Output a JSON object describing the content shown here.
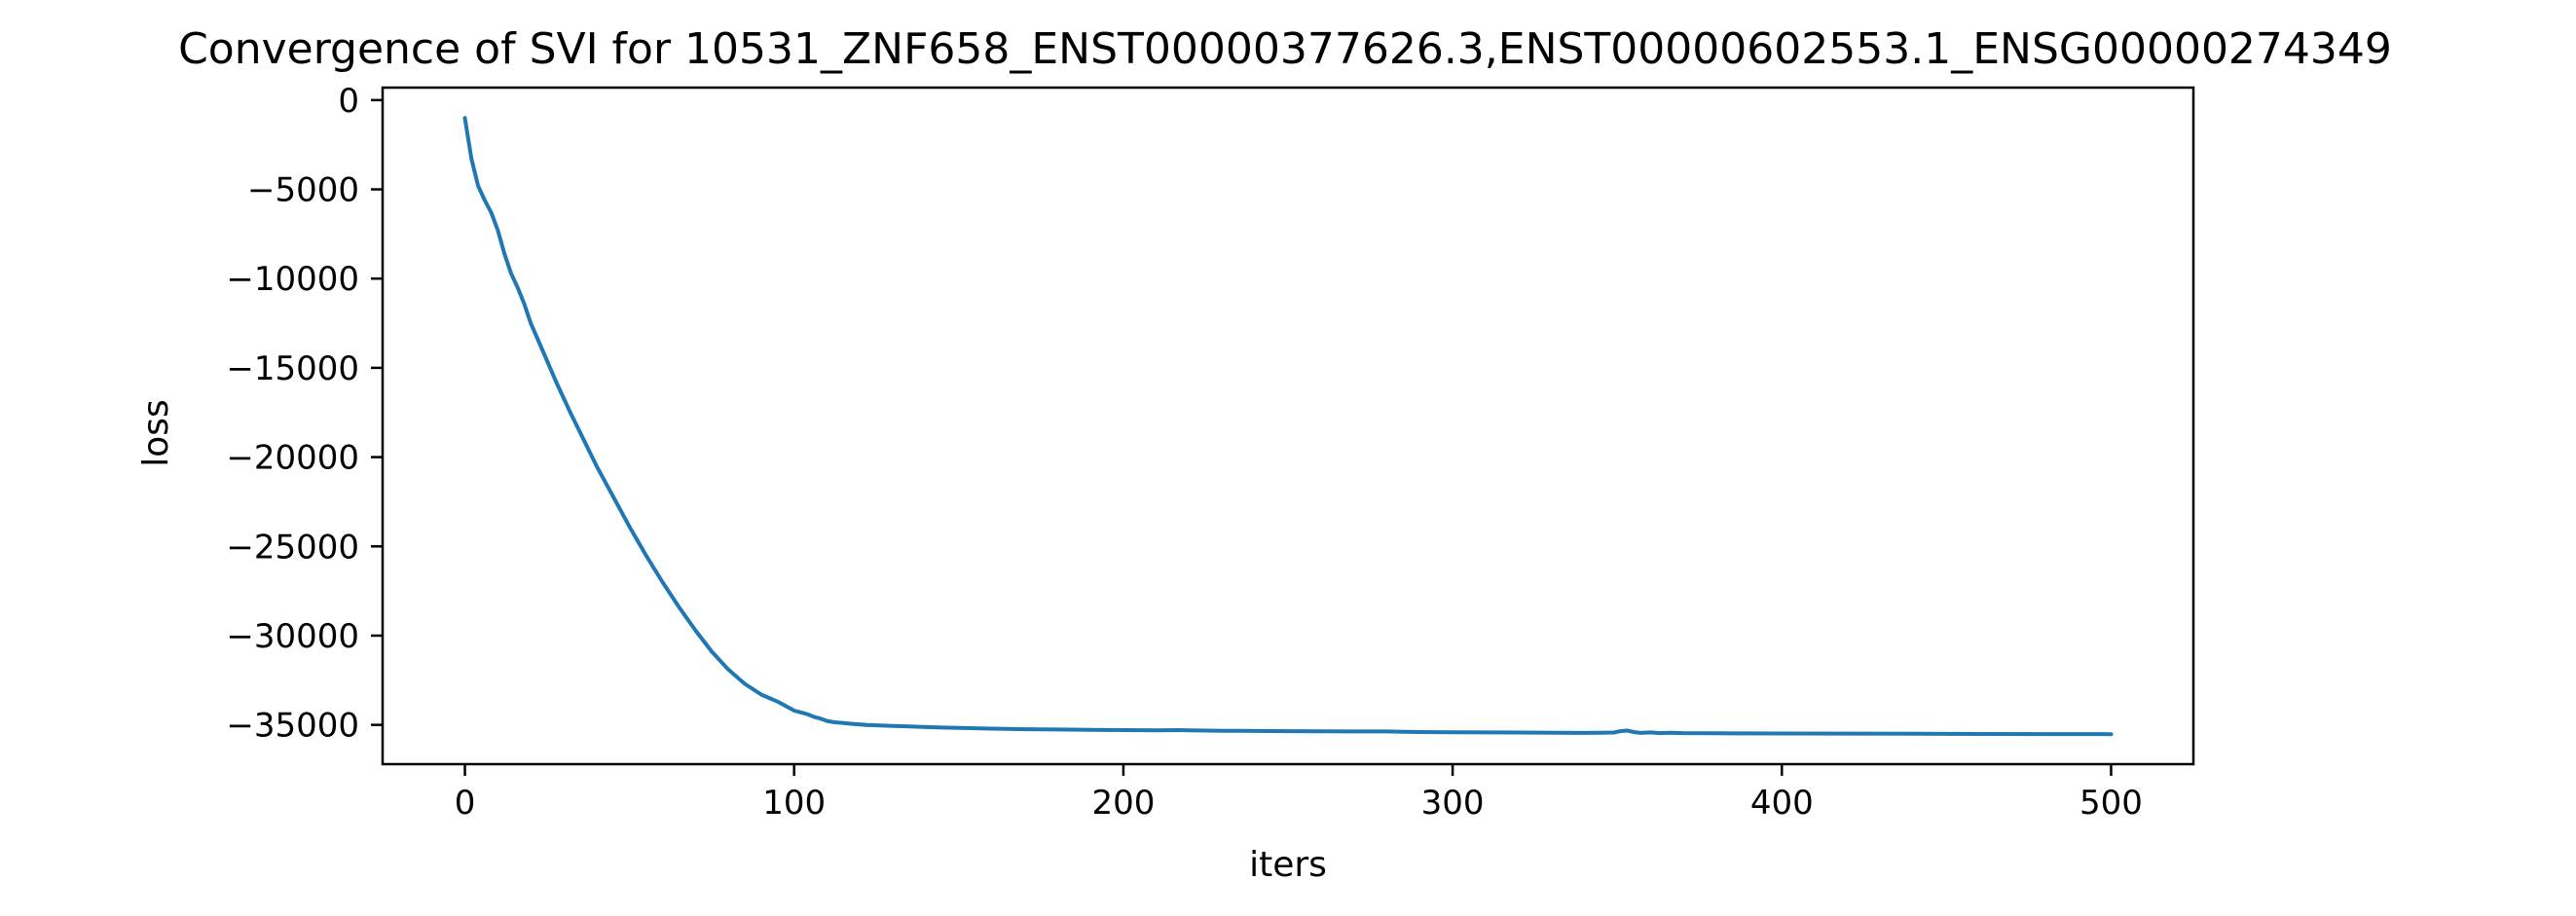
{
  "chart_data": {
    "type": "line",
    "title": "Convergence of SVI for 10531_ZNF658_ENST00000377626.3,ENST00000602553.1_ENSG00000274349",
    "xlabel": "iters",
    "ylabel": "loss",
    "xlim": [
      -25,
      525
    ],
    "ylim": [
      -37200,
      700
    ],
    "xticks": [
      0,
      100,
      200,
      300,
      400,
      500
    ],
    "xtick_labels": [
      "0",
      "100",
      "200",
      "300",
      "400",
      "500"
    ],
    "yticks": [
      0,
      -5000,
      -10000,
      -15000,
      -20000,
      -25000,
      -30000,
      -35000
    ],
    "ytick_labels": [
      "0",
      "−5000",
      "−10000",
      "−15000",
      "−20000",
      "−25000",
      "−30000",
      "−35000"
    ],
    "grid": false,
    "series": [
      {
        "color": "#1f77b4",
        "x": [
          0,
          2,
          4,
          6,
          8,
          10,
          12,
          14,
          16,
          18,
          20,
          24,
          28,
          32,
          36,
          40,
          45,
          50,
          55,
          60,
          65,
          70,
          75,
          80,
          85,
          90,
          95,
          100,
          102,
          104,
          106,
          108,
          110,
          112,
          115,
          118,
          122,
          126,
          130,
          135,
          140,
          145,
          150,
          155,
          160,
          170,
          180,
          190,
          200,
          210,
          217,
          220,
          225,
          230,
          240,
          250,
          260,
          270,
          280,
          285,
          290,
          300,
          310,
          320,
          330,
          340,
          345,
          349,
          351,
          353,
          355,
          357,
          360,
          363,
          366,
          370,
          380,
          400,
          420,
          440,
          460,
          480,
          500
        ],
        "y": [
          -1000,
          -3300,
          -4800,
          -5600,
          -6300,
          -7300,
          -8600,
          -9700,
          -10500,
          -11400,
          -12500,
          -14200,
          -15900,
          -17500,
          -19000,
          -20500,
          -22200,
          -23900,
          -25500,
          -27000,
          -28400,
          -29700,
          -30900,
          -31900,
          -32700,
          -33300,
          -33700,
          -34200,
          -34300,
          -34400,
          -34550,
          -34650,
          -34780,
          -34850,
          -34900,
          -34950,
          -35000,
          -35030,
          -35060,
          -35090,
          -35120,
          -35150,
          -35170,
          -35190,
          -35210,
          -35240,
          -35260,
          -35280,
          -35290,
          -35300,
          -35290,
          -35310,
          -35320,
          -35330,
          -35340,
          -35350,
          -35360,
          -35370,
          -35370,
          -35390,
          -35400,
          -35410,
          -35420,
          -35430,
          -35440,
          -35450,
          -35440,
          -35430,
          -35350,
          -35320,
          -35400,
          -35450,
          -35420,
          -35460,
          -35440,
          -35460,
          -35470,
          -35480,
          -35490,
          -35500,
          -35510,
          -35515,
          -35520
        ]
      }
    ]
  }
}
